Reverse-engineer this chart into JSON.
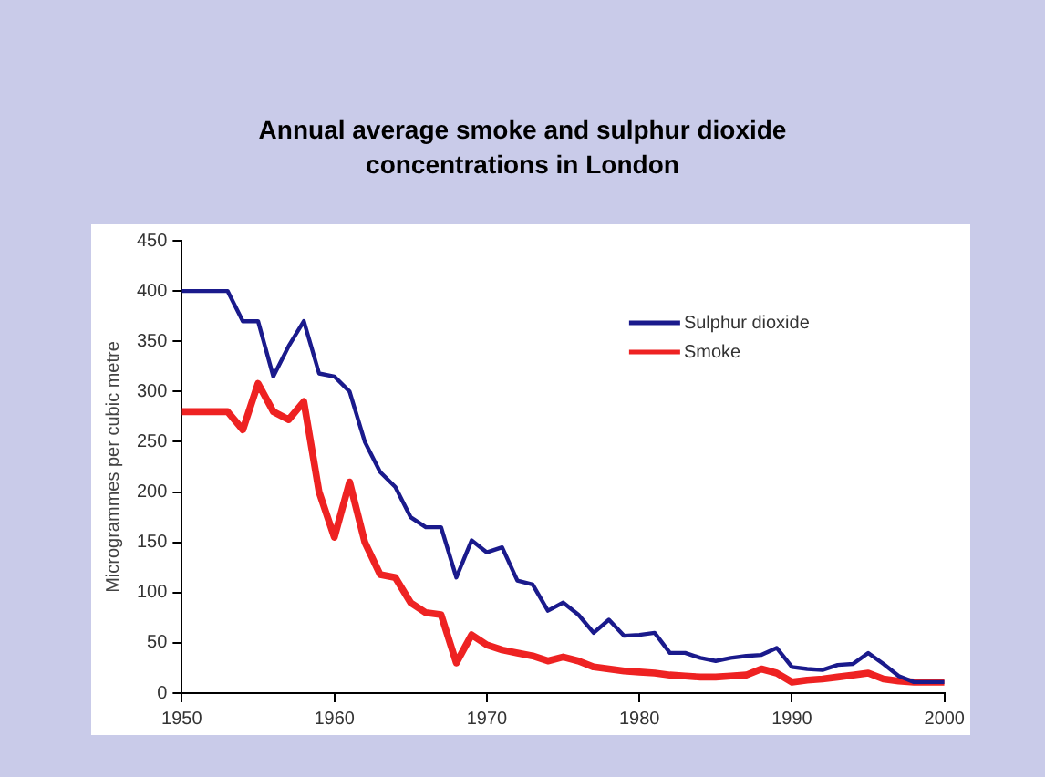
{
  "chart_data": {
    "type": "line",
    "title": "Annual average smoke and sulphur dioxide concentrations in London",
    "ylabel": "Microgrammes per cubic metre",
    "x": [
      1950,
      1951,
      1952,
      1953,
      1954,
      1955,
      1956,
      1957,
      1958,
      1959,
      1960,
      1961,
      1962,
      1963,
      1964,
      1965,
      1966,
      1967,
      1968,
      1969,
      1970,
      1971,
      1972,
      1973,
      1974,
      1975,
      1976,
      1977,
      1978,
      1979,
      1980,
      1981,
      1982,
      1983,
      1984,
      1985,
      1986,
      1987,
      1988,
      1989,
      1990,
      1991,
      1992,
      1993,
      1994,
      1995,
      1996,
      1997,
      1998,
      1999,
      2000
    ],
    "series": [
      {
        "name": "Sulphur dioxide",
        "color": "#1a1a8c",
        "values": [
          400,
          400,
          400,
          400,
          370,
          370,
          315,
          345,
          370,
          318,
          315,
          300,
          250,
          220,
          205,
          175,
          165,
          165,
          115,
          152,
          140,
          145,
          112,
          108,
          82,
          90,
          78,
          60,
          73,
          57,
          58,
          60,
          40,
          40,
          35,
          32,
          35,
          37,
          38,
          45,
          26,
          24,
          23,
          28,
          29,
          40,
          29,
          17,
          11,
          11,
          11
        ]
      },
      {
        "name": "Smoke",
        "color": "#ee2222",
        "values": [
          280,
          280,
          280,
          280,
          262,
          308,
          280,
          272,
          290,
          200,
          155,
          210,
          150,
          118,
          115,
          90,
          80,
          78,
          30,
          58,
          48,
          43,
          40,
          37,
          32,
          36,
          32,
          26,
          24,
          22,
          21,
          20,
          18,
          17,
          16,
          16,
          17,
          18,
          24,
          20,
          11,
          13,
          14,
          16,
          18,
          20,
          14,
          12,
          11,
          11,
          11
        ]
      }
    ],
    "xlim": [
      1950,
      2000
    ],
    "xticks": [
      1950,
      1960,
      1970,
      1980,
      1990,
      2000
    ],
    "ylim": [
      0,
      450
    ],
    "yticks": [
      0,
      50,
      100,
      150,
      200,
      250,
      300,
      350,
      400,
      450
    ],
    "grid": false,
    "legend": "top right",
    "marker": "none",
    "line_style": "solid"
  }
}
